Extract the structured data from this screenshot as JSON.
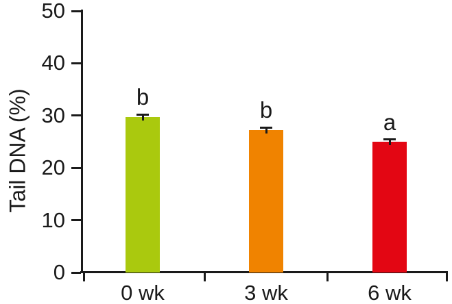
{
  "chart_data": {
    "type": "bar",
    "title": "",
    "ylabel": "Tail DNA (%)",
    "xlabel": "",
    "ylim": [
      0,
      50
    ],
    "yticks": [
      0,
      10,
      20,
      30,
      40,
      50
    ],
    "categories": [
      "0 wk",
      "3 wk",
      "6 wk"
    ],
    "values": [
      29.7,
      27.2,
      25.0
    ],
    "errors": [
      0.5,
      0.5,
      0.4
    ],
    "bar_colors": [
      "#aac90e",
      "#f08300",
      "#e30613"
    ],
    "significance_letters": [
      "b",
      "b",
      "a"
    ],
    "axis_color": "#1a1a1a",
    "background_color": "#ffffff",
    "grid": false,
    "legend": "none"
  }
}
